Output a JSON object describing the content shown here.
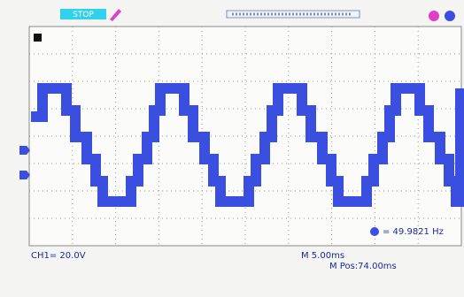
{
  "header": {
    "status": "STOP"
  },
  "measurement": {
    "frequency": "= 49.9821 Hz"
  },
  "footer": {
    "channel": "CH1= 20.0V",
    "timebase": "M 5.00ms",
    "position": "M Pos:74.00ms"
  }
}
